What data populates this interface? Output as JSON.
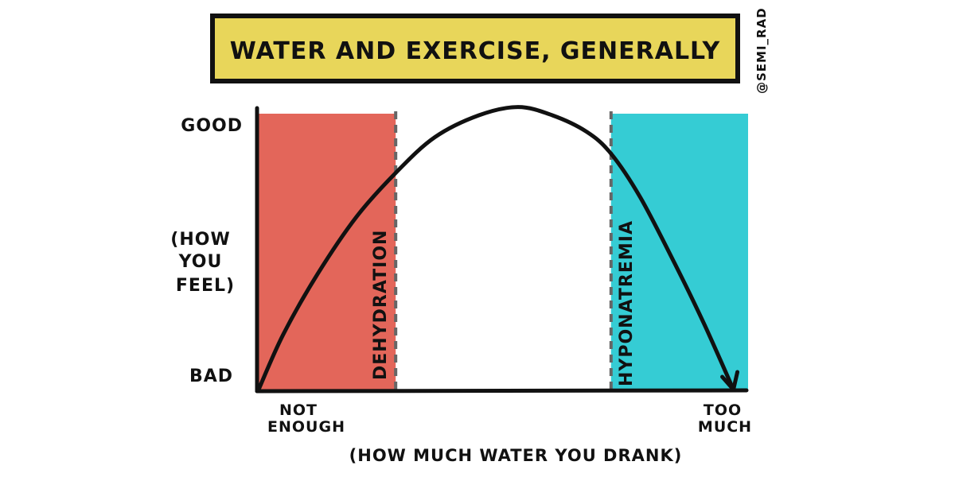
{
  "chart_data": {
    "type": "line",
    "title": "WATER AND EXERCISE, GENERALLY",
    "credit": "@SEMI_RAD",
    "xlabel": "(HOW MUCH WATER YOU DRANK)",
    "ylabel": [
      "(HOW",
      "YOU",
      "FEEL)"
    ],
    "x_tick_labels": {
      "low": [
        "NOT",
        "ENOUGH"
      ],
      "high": [
        "TOO",
        "MUCH"
      ]
    },
    "y_tick_labels": {
      "low": "BAD",
      "high": "GOOD"
    },
    "xlim": [
      0,
      1
    ],
    "ylim": [
      0,
      1
    ],
    "grid": false,
    "regions": [
      {
        "label": "DEHYDRATION",
        "x": [
          0,
          0.28
        ],
        "color": "#E3665A"
      },
      {
        "label": "HYPONATREMIA",
        "x": [
          0.72,
          1
        ],
        "color": "#35CCD4"
      }
    ],
    "series": [
      {
        "color": "#111111",
        "arrow_end": true,
        "x": [
          0,
          0.05,
          0.12,
          0.2,
          0.28,
          0.36,
          0.45,
          0.53,
          0.6,
          0.67,
          0.72,
          0.78,
          0.85,
          0.91,
          0.97
        ],
        "y": [
          0,
          0.2,
          0.42,
          0.63,
          0.79,
          0.92,
          1.0,
          1.03,
          1.0,
          0.94,
          0.86,
          0.7,
          0.46,
          0.24,
          0
        ]
      }
    ],
    "colors": {
      "title_box": "#E8D65A",
      "dehydration": "#E3665A",
      "hyponatremia": "#35CCD4"
    }
  }
}
